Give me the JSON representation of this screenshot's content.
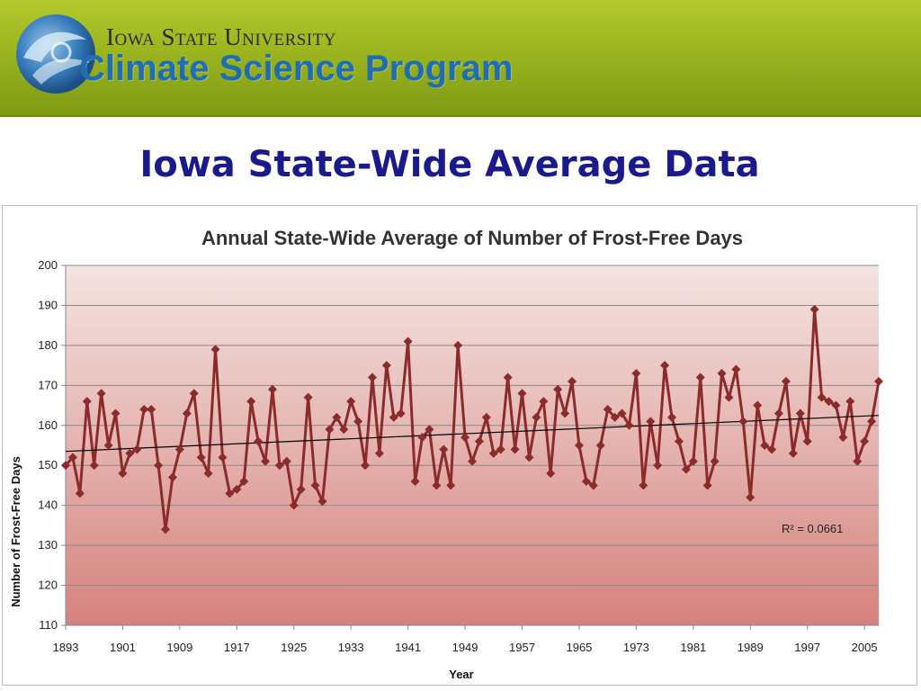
{
  "header": {
    "university": "Iowa State University",
    "program": "Climate Science Program",
    "logo_icon": "globe-swirl-icon"
  },
  "slide": {
    "title": "Iowa State-Wide Average Data"
  },
  "colors": {
    "series": "#8b2b2b",
    "trend": "#000000",
    "title_blue": "#1a1a8c",
    "program_blue": "#1f6db5",
    "banner_green": "#9bb51f"
  },
  "chart_data": {
    "type": "line",
    "title": "Annual State-Wide Average of Number of Frost-Free Days",
    "xlabel": "Year",
    "ylabel": "Number of Frost-Free Days",
    "xlim": [
      1893,
      2007
    ],
    "ylim": [
      110,
      200
    ],
    "grid": true,
    "xticks": [
      1893,
      1901,
      1909,
      1917,
      1925,
      1933,
      1941,
      1949,
      1957,
      1965,
      1973,
      1981,
      1989,
      1997,
      2005
    ],
    "yticks": [
      110,
      120,
      130,
      140,
      150,
      160,
      170,
      180,
      190,
      200
    ],
    "x": [
      1893,
      1894,
      1895,
      1896,
      1897,
      1898,
      1899,
      1900,
      1901,
      1902,
      1903,
      1904,
      1905,
      1906,
      1907,
      1908,
      1909,
      1910,
      1911,
      1912,
      1913,
      1914,
      1915,
      1916,
      1917,
      1918,
      1919,
      1920,
      1921,
      1922,
      1923,
      1924,
      1925,
      1926,
      1927,
      1928,
      1929,
      1930,
      1931,
      1932,
      1933,
      1934,
      1935,
      1936,
      1937,
      1938,
      1939,
      1940,
      1941,
      1942,
      1943,
      1944,
      1945,
      1946,
      1947,
      1948,
      1949,
      1950,
      1951,
      1952,
      1953,
      1954,
      1955,
      1956,
      1957,
      1958,
      1959,
      1960,
      1961,
      1962,
      1963,
      1964,
      1965,
      1966,
      1967,
      1968,
      1969,
      1970,
      1971,
      1972,
      1973,
      1974,
      1975,
      1976,
      1977,
      1978,
      1979,
      1980,
      1981,
      1982,
      1983,
      1984,
      1985,
      1986,
      1987,
      1988,
      1989,
      1990,
      1991,
      1992,
      1993,
      1994,
      1995,
      1996,
      1997,
      1998,
      1999,
      2000,
      2001,
      2002,
      2003,
      2004,
      2005,
      2006,
      2007
    ],
    "series": [
      {
        "values": [
          150,
          152,
          143,
          166,
          150,
          168,
          155,
          163,
          148,
          153,
          154,
          164,
          164,
          150,
          134,
          147,
          154,
          163,
          168,
          152,
          148,
          179,
          152,
          143,
          144,
          146,
          166,
          156,
          151,
          169,
          150,
          151,
          140,
          144,
          167,
          145,
          141,
          159,
          162,
          159,
          166,
          161,
          150,
          172,
          153,
          175,
          162,
          163,
          181,
          146,
          157,
          159,
          145,
          154,
          145,
          180,
          157,
          151,
          156,
          162,
          153,
          154,
          172,
          154,
          168,
          152,
          162,
          166,
          148,
          169,
          163,
          171,
          155,
          146,
          145,
          155,
          164,
          162,
          163,
          160,
          173,
          145,
          161,
          150,
          175,
          162,
          156,
          149,
          151,
          172,
          145,
          151,
          173,
          167,
          174,
          161,
          142,
          165,
          155,
          154,
          163,
          171,
          153,
          163,
          156,
          189,
          167,
          166,
          165,
          157,
          166,
          151,
          156,
          161,
          171
        ]
      }
    ],
    "trendline": {
      "start": [
        1893,
        153.5
      ],
      "end": [
        2007,
        162.5
      ]
    },
    "annotation": "R² = 0.0661"
  }
}
